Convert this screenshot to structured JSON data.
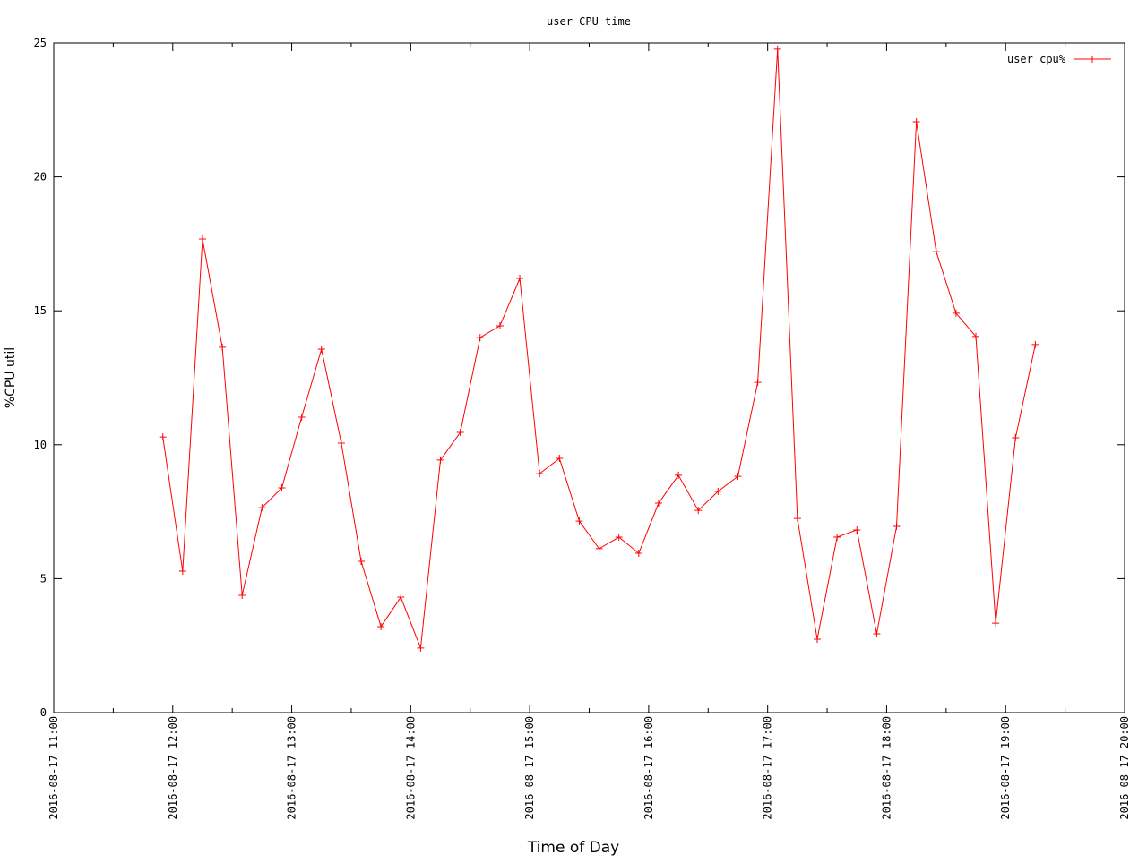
{
  "chart_data": {
    "type": "line",
    "title": "user CPU time",
    "x_label": "Time of Day",
    "y_label": "%CPU util",
    "x": [
      "2016-08-17 11:55",
      "2016-08-17 12:05",
      "2016-08-17 12:15",
      "2016-08-17 12:25",
      "2016-08-17 12:35",
      "2016-08-17 12:45",
      "2016-08-17 12:55",
      "2016-08-17 13:05",
      "2016-08-17 13:15",
      "2016-08-17 13:25",
      "2016-08-17 13:35",
      "2016-08-17 13:45",
      "2016-08-17 13:55",
      "2016-08-17 14:05",
      "2016-08-17 14:15",
      "2016-08-17 14:25",
      "2016-08-17 14:35",
      "2016-08-17 14:45",
      "2016-08-17 14:55",
      "2016-08-17 15:05",
      "2016-08-17 15:15",
      "2016-08-17 15:25",
      "2016-08-17 15:35",
      "2016-08-17 15:45",
      "2016-08-17 15:55",
      "2016-08-17 16:05",
      "2016-08-17 16:15",
      "2016-08-17 16:25",
      "2016-08-17 16:35",
      "2016-08-17 16:45",
      "2016-08-17 16:55",
      "2016-08-17 17:05",
      "2016-08-17 17:15",
      "2016-08-17 17:25",
      "2016-08-17 17:35",
      "2016-08-17 17:45",
      "2016-08-17 17:55",
      "2016-08-17 18:05",
      "2016-08-17 18:15",
      "2016-08-17 18:25",
      "2016-08-17 18:35",
      "2016-08-17 18:45",
      "2016-08-17 18:55",
      "2016-08-17 19:05",
      "2016-08-17 19:15"
    ],
    "series": [
      {
        "name": "user cpu%",
        "color": "#ff0000",
        "values": [
          10.29,
          5.28,
          17.68,
          13.64,
          4.38,
          7.65,
          8.39,
          11.03,
          13.57,
          10.06,
          5.65,
          3.21,
          4.31,
          2.41,
          9.43,
          10.46,
          14.0,
          14.44,
          16.21,
          8.92,
          9.49,
          7.15,
          6.12,
          6.55,
          5.95,
          7.82,
          8.86,
          7.55,
          8.26,
          8.82,
          12.33,
          24.77,
          7.25,
          2.74,
          6.55,
          6.82,
          2.94,
          6.95,
          22.06,
          17.21,
          14.91,
          14.04,
          3.34,
          10.26,
          13.74
        ]
      }
    ],
    "xlim": [
      "2016-08-17 11:00",
      "2016-08-17 20:00"
    ],
    "xticks": [
      "2016-08-17 11:00",
      "2016-08-17 12:00",
      "2016-08-17 13:00",
      "2016-08-17 14:00",
      "2016-08-17 15:00",
      "2016-08-17 16:00",
      "2016-08-17 17:00",
      "2016-08-17 18:00",
      "2016-08-17 19:00",
      "2016-08-17 20:00"
    ],
    "ylim": [
      0,
      25
    ],
    "yticks": [
      0,
      5,
      10,
      15,
      20,
      25
    ],
    "grid": false,
    "legend": "top-right"
  }
}
